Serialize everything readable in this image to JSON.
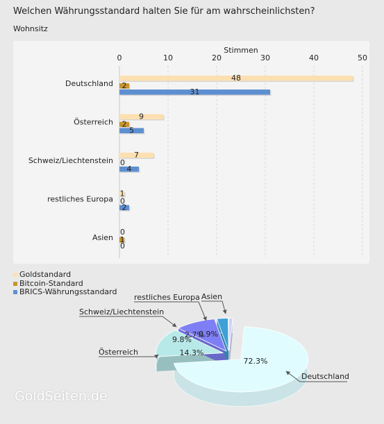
{
  "title": "Welchen Währungsstandard halten Sie für am wahrscheinlichsten?",
  "subtitle": "Wohnsitz",
  "watermark": "GoldSeiten.de",
  "colors": {
    "gold": "#fde0b1",
    "bitcoin": "#c9952c",
    "brics": "#5e8fd1"
  },
  "chart_data": [
    {
      "type": "bar",
      "orientation": "horizontal",
      "xlabel": "Stimmen",
      "xlim": [
        0,
        50
      ],
      "xticks": [
        0,
        10,
        20,
        30,
        40,
        50
      ],
      "grid": true,
      "categories": [
        "Deutschland",
        "Österreich",
        "Schweiz/Liechtenstein",
        "restliches Europa",
        "Asien"
      ],
      "series": [
        {
          "name": "Goldstandard",
          "color": "#fde0b1",
          "values": [
            48,
            9,
            7,
            1,
            0
          ]
        },
        {
          "name": "Bitcoin-Standard",
          "color": "#c9952c",
          "values": [
            2,
            2,
            0,
            0,
            1
          ]
        },
        {
          "name": "BRICS-Währungsstandard",
          "color": "#5e8fd1",
          "values": [
            31,
            5,
            4,
            2,
            0
          ]
        }
      ],
      "legend_position": "bottom-left"
    },
    {
      "type": "pie",
      "style": "3d-exploded",
      "slices": [
        {
          "label": "Deutschland",
          "percent": 72.3,
          "value_label": "72.3%",
          "color": "#e0fcff"
        },
        {
          "label": "Österreich",
          "percent": 14.3,
          "value_label": "14.3%",
          "color": "#b8e9e9"
        },
        {
          "label": "Schweiz/Liechtenstein",
          "percent": 9.8,
          "value_label": "9.8%",
          "color": "#7f7ff5"
        },
        {
          "label": "restliches Europa",
          "percent": 2.7,
          "value_label": "2.7%",
          "color": "#3fa0d8"
        },
        {
          "label": "Asien",
          "percent": 0.9,
          "value_label": "0.9%",
          "color": "#cfcff8"
        }
      ]
    }
  ]
}
